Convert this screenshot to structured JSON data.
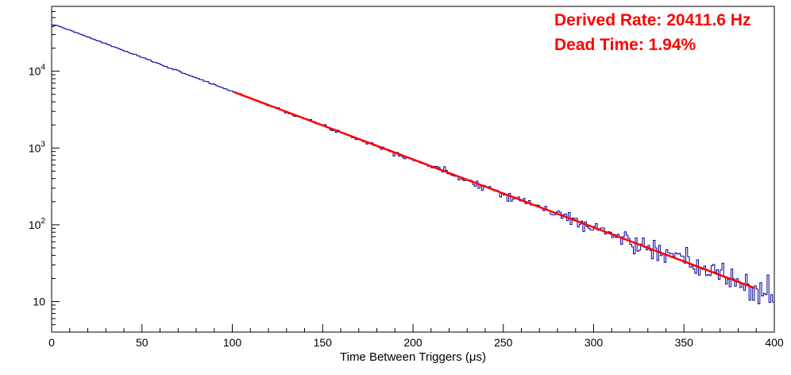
{
  "annotation": {
    "derived_rate": "Derived Rate: 20411.6 Hz",
    "dead_time": "Dead Time: 1.94%",
    "color": "#ff0000"
  },
  "chart_data": {
    "type": "bar",
    "subtype": "histogram-step-with-exponential-fit",
    "title": "",
    "xlabel": "Time Between Triggers (μs)",
    "ylabel": "",
    "xlim": [
      0,
      400
    ],
    "ylim_log": [
      4,
      70000
    ],
    "y_scale": "log",
    "grid": false,
    "x_major_ticks": [
      0,
      50,
      100,
      150,
      200,
      250,
      300,
      350,
      400
    ],
    "x_minor_step": 10,
    "y_major_ticks": [
      10,
      100,
      1000,
      10000
    ],
    "bins": 400,
    "series_color": "#000099",
    "model": {
      "amplitude": 42000,
      "decay_per_us": 0.0204
    },
    "fit": {
      "range": [
        101,
        389
      ],
      "amplitude": 42000,
      "decay_per_us": 0.0204,
      "color": "#ff0000",
      "width": 2.5
    },
    "noise_seed": 7,
    "anchor_points": [
      {
        "x": 0,
        "y": 38000
      },
      {
        "x": 50,
        "y": 15000
      },
      {
        "x": 100,
        "y": 5200
      },
      {
        "x": 150,
        "y": 1900
      },
      {
        "x": 200,
        "y": 660
      },
      {
        "x": 250,
        "y": 240
      },
      {
        "x": 300,
        "y": 88
      },
      {
        "x": 350,
        "y": 31
      },
      {
        "x": 400,
        "y": 11
      }
    ]
  }
}
